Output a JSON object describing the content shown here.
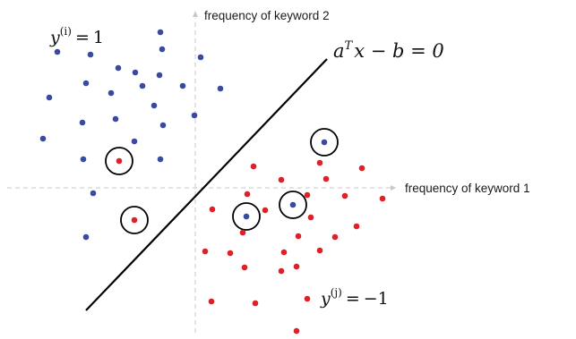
{
  "axes": {
    "x_label": "frequency of keyword 1",
    "y_label": "frequency of keyword 2"
  },
  "boundary": {
    "equation_lhs_base": "a",
    "equation_lhs_sup": "T",
    "equation_rest": "x − b = 0"
  },
  "class_pos": {
    "var": "y",
    "sup": "(i)",
    "eq": "=",
    "value": "1",
    "color": "#3a4aa0"
  },
  "class_neg": {
    "var": "y",
    "sup": "(j)",
    "eq": "=",
    "value": "−1",
    "color": "#e01f26"
  },
  "colors": {
    "axis": "#c8c8c8",
    "line": "#000000",
    "blue": "#3a4aa0",
    "red": "#e01f26"
  }
}
